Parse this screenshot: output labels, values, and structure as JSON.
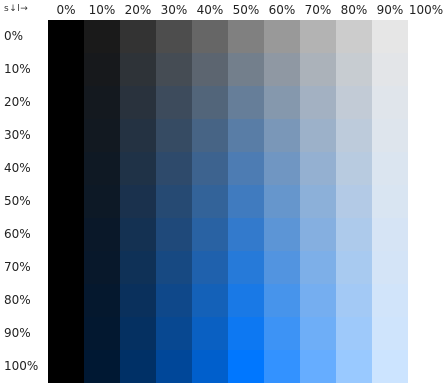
{
  "corner_label": "s↓l→",
  "column_labels": [
    "0%",
    "10%",
    "20%",
    "30%",
    "40%",
    "50%",
    "60%",
    "70%",
    "80%",
    "90%",
    "100%"
  ],
  "row_labels": [
    "0%",
    "10%",
    "20%",
    "30%",
    "40%",
    "50%",
    "60%",
    "70%",
    "80%",
    "90%",
    "100%"
  ],
  "swatch_hue": 212,
  "saturation_levels": [
    0,
    10,
    20,
    30,
    40,
    50,
    60,
    70,
    80,
    90,
    100
  ],
  "lightness_levels": [
    0,
    10,
    20,
    30,
    40,
    50,
    60,
    70,
    80,
    90,
    100
  ],
  "visible_lightness_columns": 10
}
